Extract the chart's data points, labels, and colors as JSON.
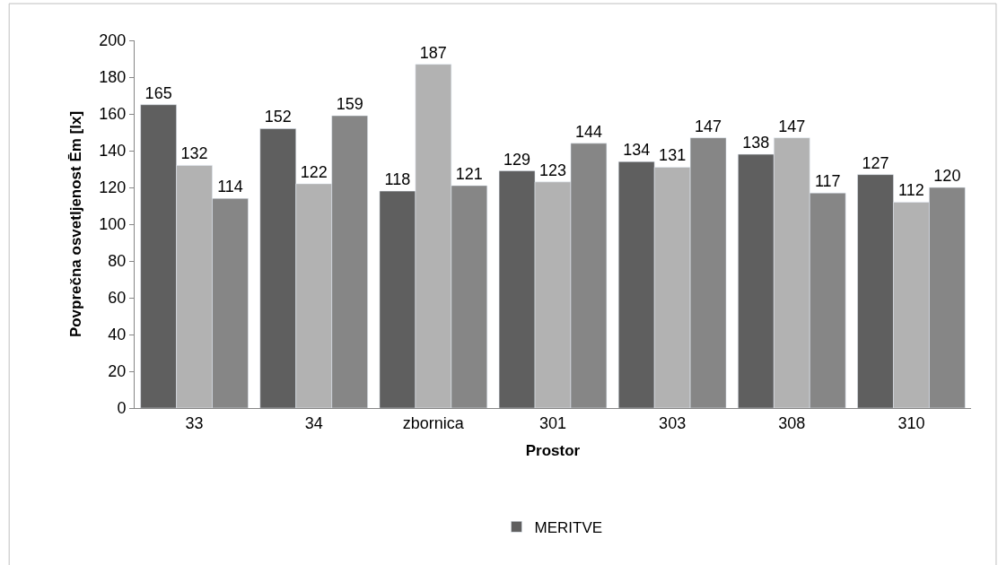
{
  "chart_data": {
    "type": "bar",
    "xlabel": "Prostor",
    "ylabel": "Povprečna osvetljenost Ēm [lx]",
    "categories": [
      "33",
      "34",
      "zbornica",
      "301",
      "303",
      "308",
      "310"
    ],
    "series": [
      {
        "name": "MERITVE",
        "color": "#5f5f5f",
        "values": [
          165,
          152,
          118,
          129,
          134,
          138,
          127
        ]
      },
      {
        "color": "#b2b2b2",
        "values": [
          132,
          122,
          187,
          123,
          131,
          147,
          112
        ]
      },
      {
        "color": "#868686",
        "values": [
          114,
          159,
          121,
          144,
          147,
          117,
          120
        ]
      }
    ],
    "ylim": [
      0,
      200
    ],
    "yticks": [
      0,
      20,
      40,
      60,
      80,
      100,
      120,
      140,
      160,
      180,
      200
    ],
    "data_labels": true,
    "legend": "bottom",
    "grid": false
  }
}
